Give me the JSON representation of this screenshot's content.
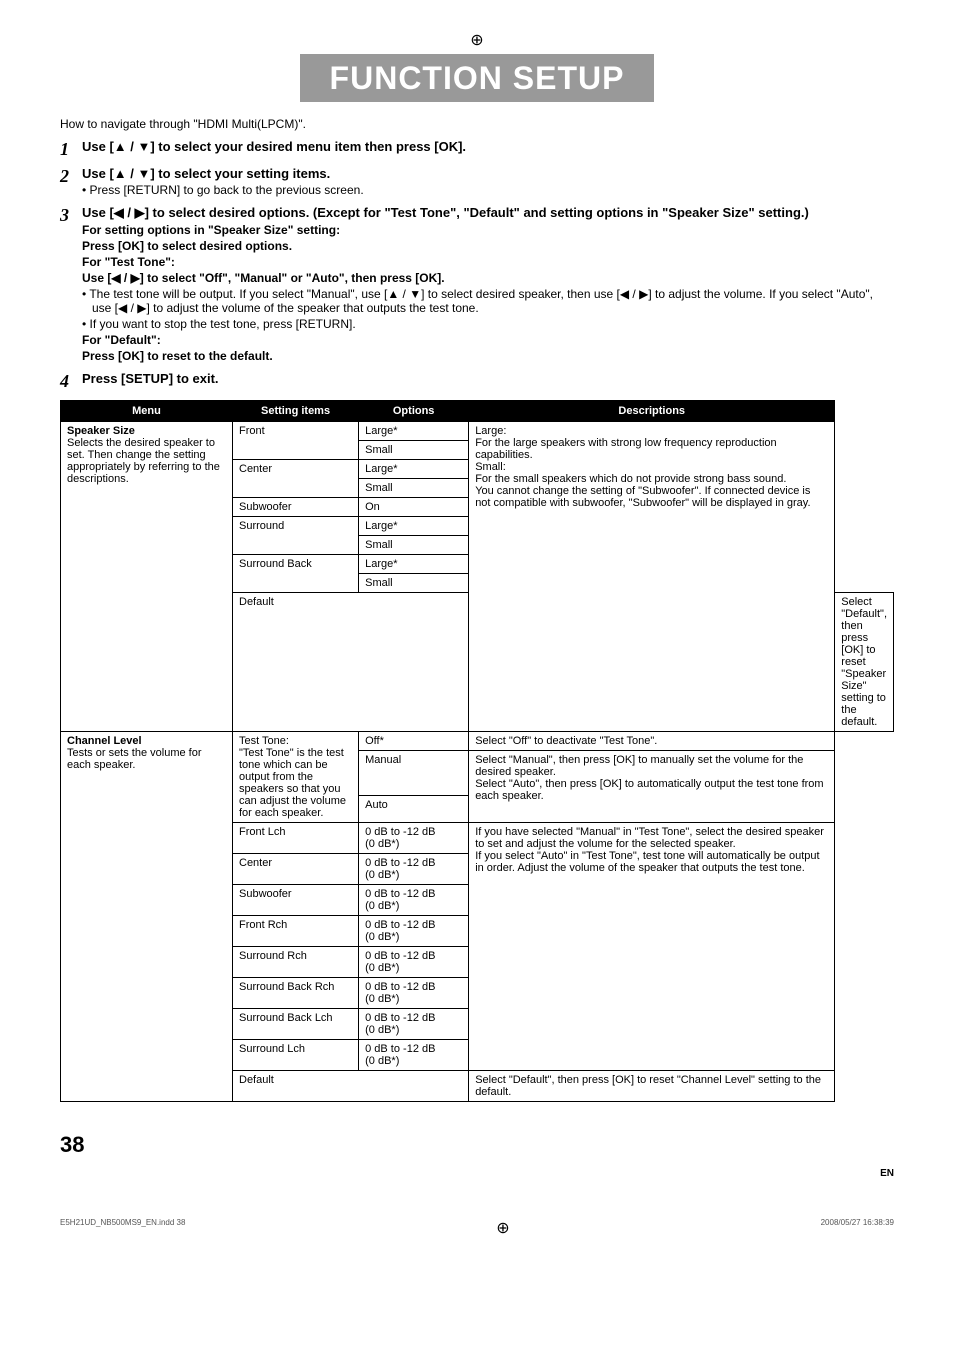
{
  "crop_top": "⊕",
  "title": "FUNCTION SETUP",
  "intro": "How to navigate through \"HDMI Multi(LPCM)\".",
  "steps": [
    {
      "num": "1",
      "title": "Use [▲ / ▼] to select your desired menu item then press [OK]."
    },
    {
      "num": "2",
      "title": "Use [▲ / ▼] to select your setting items.",
      "subs": [
        {
          "type": "bullet",
          "text": "• Press [RETURN] to go back to the previous screen."
        }
      ]
    },
    {
      "num": "3",
      "title": "Use [◀ / ▶] to select desired options. (Except for \"Test Tone\", \"Default\" and setting options in \"Speaker Size\" setting.)",
      "subs": [
        {
          "type": "bold",
          "text": "For setting options in \"Speaker Size\" setting:"
        },
        {
          "type": "bold",
          "text": "Press [OK]  to select desired options."
        },
        {
          "type": "bold",
          "text": "For \"Test Tone\":"
        },
        {
          "type": "bold",
          "text": "Use [◀ / ▶] to select \"Off\", \"Manual\" or \"Auto\", then press [OK]."
        },
        {
          "type": "bullet",
          "text": "• The test tone will be output. If you select \"Manual\", use [▲ / ▼] to select desired speaker, then use [◀ / ▶] to adjust the volume. If you select \"Auto\", use [◀ / ▶] to adjust the volume of the speaker that outputs the test tone."
        },
        {
          "type": "bullet",
          "text": "• If you want to stop the test tone, press [RETURN]."
        },
        {
          "type": "bold",
          "text": "For \"Default\":"
        },
        {
          "type": "bold",
          "text": "Press [OK] to reset to the default."
        }
      ]
    },
    {
      "num": "4",
      "title": "Press [SETUP] to exit."
    }
  ],
  "table": {
    "headers": [
      "Menu",
      "Setting items",
      "Options",
      "Descriptions"
    ],
    "groups": [
      {
        "menu_bold": "Speaker Size",
        "menu_text": "Selects the desired speaker to set. Then change the setting appropriately by referring to the descriptions.",
        "rows": [
          {
            "setting": "Front",
            "setting_rowspan": 2,
            "option": "Large*",
            "desc": "Large:\nFor the large speakers with strong low frequency reproduction capabilities.\nSmall:\nFor the small speakers which do not provide strong bass sound.\nYou cannot change the setting of \"Subwoofer\". If connected device is not compatible with subwoofer, \"Subwoofer\" will be displayed in gray.",
            "desc_rowspan": 10
          },
          {
            "option": "Small"
          },
          {
            "setting": "Center",
            "setting_rowspan": 2,
            "option": "Large*"
          },
          {
            "option": "Small"
          },
          {
            "setting": "Subwoofer",
            "option": "On"
          },
          {
            "setting": "Surround",
            "setting_rowspan": 2,
            "option": "Large*"
          },
          {
            "option": "Small"
          },
          {
            "setting": "Surround Back",
            "setting_rowspan": 2,
            "option": "Large*"
          },
          {
            "option": "Small"
          },
          {
            "setting_colspan": 2,
            "setting": "Default",
            "desc": "Select \"Default\", then press [OK] to reset \"Speaker Size\" setting to the default."
          }
        ]
      },
      {
        "menu_bold": "Channel Level",
        "menu_text": "Tests or sets the volume for each speaker.",
        "rows": [
          {
            "setting": "Test Tone:\n\"Test Tone\" is the test tone which can be output from the speakers so that you  can adjust the volume for each speaker.",
            "setting_rowspan": 3,
            "option": "Off*",
            "desc": "Select \"Off\" to deactivate \"Test Tone\"."
          },
          {
            "option": "Manual",
            "desc": "Select \"Manual\", then press [OK] to manually set the volume for the desired speaker.\nSelect \"Auto\", then press [OK] to automatically output the test tone from each speaker.",
            "desc_rowspan": 2
          },
          {
            "option": "Auto"
          },
          {
            "setting": "Front Lch",
            "option": "0 dB to -12 dB\n(0 dB*)",
            "desc": "If you have selected \"Manual\" in \"Test Tone\", select the desired speaker to set and adjust the volume for the selected speaker.\nIf you select \"Auto\" in \"Test Tone\", test tone will automatically be output in order. Adjust the volume of the speaker that outputs the test tone.",
            "desc_rowspan": 8
          },
          {
            "setting": "Center",
            "option": "0 dB to -12 dB\n(0 dB*)"
          },
          {
            "setting": "Subwoofer",
            "option": "0 dB to -12 dB\n(0 dB*)"
          },
          {
            "setting": "Front Rch",
            "option": "0 dB to -12 dB\n(0 dB*)"
          },
          {
            "setting": "Surround Rch",
            "option": "0 dB to -12 dB\n(0 dB*)"
          },
          {
            "setting": "Surround Back Rch",
            "option": "0 dB to -12 dB\n(0 dB*)"
          },
          {
            "setting": "Surround Back Lch",
            "option": "0 dB to -12 dB\n(0 dB*)"
          },
          {
            "setting": "Surround Lch",
            "option": "0 dB to -12 dB\n(0 dB*)"
          },
          {
            "setting_colspan": 2,
            "setting": "Default",
            "desc": "Select \"Default\", then press [OK] to reset \"Channel Level\" setting to the default."
          }
        ]
      }
    ]
  },
  "page_number": "38",
  "en_label": "EN",
  "footer_left": "E5H21UD_NB500MS9_EN.indd   38",
  "footer_right": "2008/05/27   16:38:39",
  "crop_bottom": "⊕"
}
